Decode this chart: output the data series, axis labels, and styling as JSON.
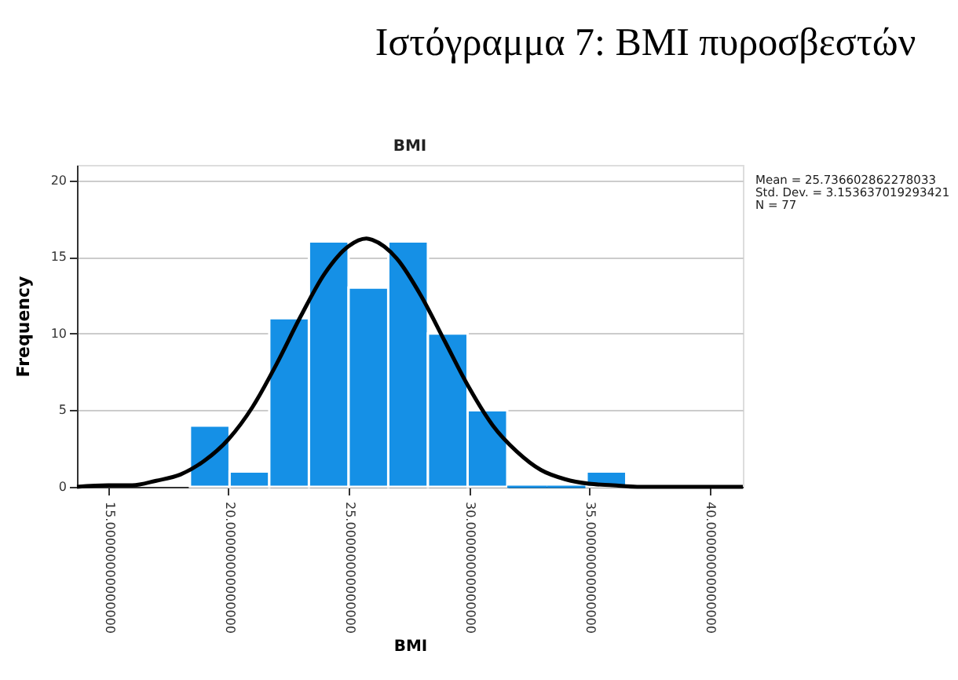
{
  "chart_data": {
    "type": "histogram",
    "title": "Ιστόγραμμα 7: BMI πυροσβεστών",
    "subtitle": "BMI",
    "xlabel": "BMI",
    "ylabel": "Frequency",
    "bins": [
      18.4,
      20.05,
      21.7,
      23.35,
      25.0,
      26.65,
      28.3,
      29.95,
      31.6,
      33.25,
      34.9,
      36.55
    ],
    "values": [
      4,
      1,
      11,
      16,
      13,
      16,
      10,
      5,
      0,
      0,
      1
    ],
    "color": "#1590e6",
    "series": [
      {
        "type": "line",
        "color": "#000000",
        "x": [
          13.7,
          15,
          16,
          17,
          18,
          19,
          20,
          21,
          22,
          23,
          24,
          25,
          25.74,
          26,
          27,
          28,
          29,
          30,
          31,
          32,
          33,
          34,
          35,
          36,
          37,
          38,
          39,
          40,
          41.4
        ],
        "values": [
          0,
          0.1,
          0.1,
          0.4,
          0.8,
          1.7,
          3.1,
          5.2,
          8,
          11.1,
          13.9,
          15.7,
          16.2,
          16.1,
          14.9,
          12.5,
          9.5,
          6.5,
          4,
          2.3,
          1.1,
          0.5,
          0.2,
          0.1,
          0,
          0,
          0,
          0,
          0
        ]
      }
    ],
    "xlim": [
      13.7,
      41.4
    ],
    "xticks": [
      {
        "value": 15,
        "label": "15.00000000000000"
      },
      {
        "value": 20,
        "label": "20.00000000000000"
      },
      {
        "value": 25,
        "label": "25.00000000000000"
      },
      {
        "value": 30,
        "label": "30.00000000000000"
      },
      {
        "value": 35,
        "label": "35.00000000000000"
      },
      {
        "value": 40,
        "label": "40.00000000000000"
      }
    ],
    "ylim": [
      0,
      21
    ],
    "yticks": [
      0,
      5,
      10,
      15,
      20
    ],
    "grid": "y",
    "annotations": [
      "Mean = 25.736602862278033",
      "Std. Dev. = 3.153637019293421",
      "N = 77"
    ]
  }
}
